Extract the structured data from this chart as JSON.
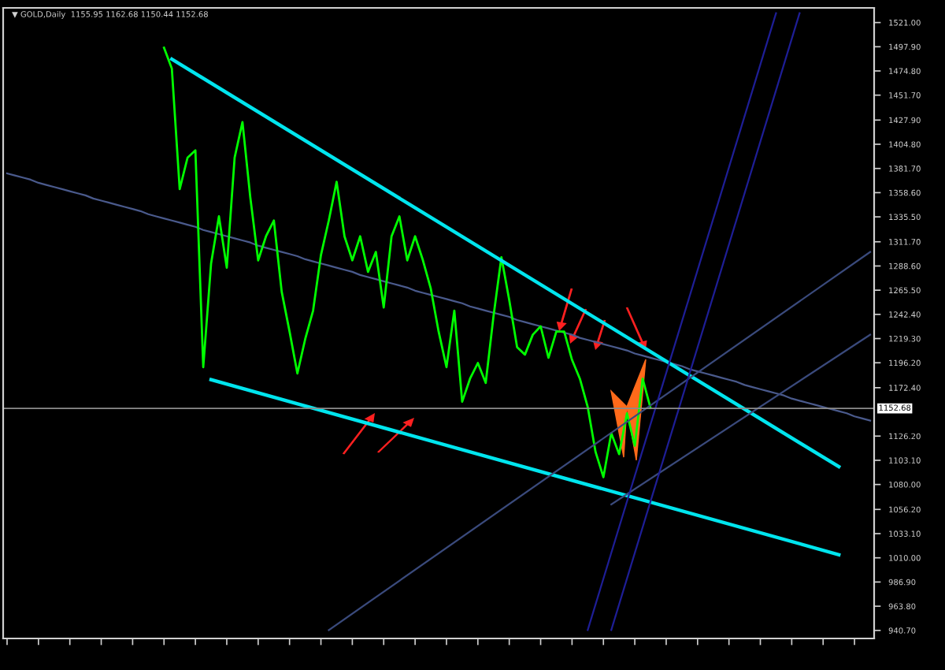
{
  "chart_data": {
    "type": "line",
    "title": "▼ GOLD,Daily  1155.95 1162.68 1150.44 1152.68",
    "categories": [
      null,
      null,
      null,
      null,
      null,
      null,
      null,
      null,
      null,
      null,
      null,
      null,
      null,
      null,
      null,
      null,
      null,
      null,
      null,
      null,
      null,
      null,
      null,
      null,
      null,
      null,
      null,
      null,
      null,
      null,
      null,
      null,
      null,
      null,
      null,
      null,
      null,
      null,
      null,
      null,
      null,
      null,
      null,
      null,
      null,
      null,
      null,
      null,
      null,
      null,
      null,
      null,
      null,
      null,
      null,
      null,
      null,
      null,
      null,
      null,
      null,
      null,
      null,
      null,
      null,
      null,
      null,
      null,
      null,
      null,
      null,
      null,
      null,
      null,
      null,
      null,
      null,
      null,
      null,
      null,
      null,
      null,
      null,
      null,
      null,
      null,
      null,
      null,
      null,
      null,
      null,
      null,
      null,
      null,
      null,
      null,
      null,
      null,
      null,
      null,
      null,
      null,
      null,
      null,
      null,
      null,
      null,
      null,
      null,
      null,
      null
    ],
    "series": [
      {
        "type": "line",
        "color": "#4a5a8c",
        "values": [
          1377,
          1375,
          1373,
          1371,
          1368,
          1366,
          1364,
          1362,
          1360,
          1358,
          1356,
          1353,
          1351,
          1349,
          1347,
          1345,
          1343,
          1341,
          1338,
          1336,
          1334,
          1332,
          1330,
          1328,
          1326,
          1323,
          1321,
          1319,
          1317,
          1315,
          1313,
          1311,
          1308,
          1306,
          1304,
          1302,
          1300,
          1298,
          1295,
          1293,
          1291,
          1289,
          1287,
          1285,
          1283,
          1280,
          1278,
          1276,
          1274,
          1272,
          1270,
          1268,
          1265,
          1263,
          1261,
          1259,
          1257,
          1255,
          1253,
          1250,
          1248,
          1246,
          1244,
          1242,
          1240,
          1237,
          1235,
          1233,
          1231,
          1229,
          1227,
          1225,
          1223,
          1220,
          1218,
          1216,
          1214,
          1212,
          1210,
          1208,
          1205,
          1203,
          1201,
          1199,
          1197,
          1195,
          1193,
          1190,
          1188,
          1186,
          1184,
          1182,
          1180,
          1178,
          1175,
          1173,
          1171,
          1169,
          1167,
          1165,
          1162,
          1160,
          1158,
          1156,
          1154,
          1152,
          1150,
          1148,
          1145,
          1143,
          1141
        ]
      },
      {
        "color": "#00ff00",
        "values": [
          null,
          null,
          null,
          null,
          null,
          null,
          null,
          null,
          null,
          null,
          null,
          null,
          null,
          null,
          null,
          null,
          null,
          null,
          null,
          null,
          1497,
          1477,
          1362,
          1392,
          1399,
          1192,
          1291,
          1336,
          1287,
          1392,
          1426,
          1354,
          1294,
          1317,
          1332,
          1264,
          1226,
          1186,
          1219,
          1246,
          1299,
          1332,
          1369,
          1317,
          1294,
          1317,
          1283,
          1302,
          1249,
          1317,
          1336,
          1294,
          1317,
          1294,
          1267,
          1226,
          1192,
          1246,
          1159,
          1181,
          1196,
          1177,
          1241,
          1297,
          1256,
          1211,
          1204,
          1223,
          1231,
          1201,
          1226,
          1226,
          1199,
          1181,
          1154,
          1111,
          1087,
          1129,
          1109,
          1148,
          1117,
          1181,
          1153,
          null,
          null,
          null,
          null,
          null,
          null,
          null,
          null,
          null,
          null,
          null,
          null,
          null,
          null,
          null,
          null,
          null,
          null,
          null,
          null,
          null,
          null,
          null,
          null,
          null,
          null,
          null,
          null
        ]
      },
      {
        "type": "line",
        "color": "#00e5ee",
        "values": [
          null,
          null,
          null,
          null,
          null,
          null,
          null,
          null,
          null,
          null,
          null,
          null,
          null,
          null,
          null,
          null,
          null,
          null,
          null,
          null,
          null,
          1486,
          null,
          null,
          null,
          null,
          null,
          null,
          null,
          null,
          null,
          null,
          null,
          null,
          null,
          null,
          null,
          null,
          null,
          null,
          null,
          null,
          null,
          null,
          null,
          null,
          null,
          null,
          null,
          null,
          null,
          null,
          null,
          null,
          null,
          null,
          null,
          null,
          null,
          null,
          null,
          null,
          null,
          null,
          null,
          null,
          null,
          null,
          null,
          null,
          null,
          null,
          null,
          null,
          null,
          null,
          null,
          null,
          null,
          null,
          null,
          null,
          null,
          null,
          null,
          null,
          null,
          null,
          null,
          null,
          null,
          null,
          null,
          null,
          null,
          null,
          null,
          null,
          null,
          null,
          null,
          null,
          null,
          null,
          null,
          null,
          1097,
          null,
          null,
          null,
          null
        ]
      },
      {
        "type": "line",
        "color": "#00e5ee",
        "values": [
          null,
          null,
          null,
          null,
          null,
          null,
          null,
          null,
          null,
          null,
          null,
          null,
          null,
          null,
          null,
          null,
          null,
          null,
          null,
          null,
          null,
          null,
          null,
          null,
          null,
          null,
          1180,
          null,
          null,
          null,
          null,
          null,
          null,
          null,
          null,
          null,
          null,
          null,
          null,
          null,
          null,
          null,
          null,
          null,
          null,
          null,
          null,
          null,
          null,
          null,
          null,
          null,
          null,
          null,
          null,
          null,
          null,
          null,
          null,
          null,
          null,
          null,
          null,
          null,
          null,
          null,
          null,
          null,
          null,
          null,
          null,
          null,
          null,
          null,
          null,
          null,
          null,
          null,
          null,
          null,
          null,
          null,
          null,
          null,
          null,
          null,
          null,
          null,
          null,
          null,
          null,
          null,
          null,
          null,
          null,
          null,
          null,
          null,
          null,
          null,
          null,
          null,
          null,
          null,
          null,
          null,
          1013,
          null,
          null,
          null,
          null
        ]
      },
      {
        "type": "line",
        "color": "#3a4a7c",
        "values": [
          null,
          null,
          null,
          null,
          null,
          null,
          null,
          null,
          null,
          null,
          null,
          null,
          null,
          null,
          null,
          null,
          null,
          null,
          null,
          null,
          null,
          null,
          null,
          null,
          null,
          null,
          null,
          null,
          null,
          null,
          null,
          null,
          null,
          null,
          null,
          null,
          null,
          null,
          null,
          null,
          null,
          941,
          null,
          null,
          null,
          null,
          null,
          null,
          null,
          null,
          null,
          null,
          null,
          null,
          null,
          null,
          null,
          null,
          null,
          null,
          null,
          null,
          null,
          null,
          null,
          null,
          null,
          null,
          null,
          null,
          null,
          null,
          null,
          null,
          null,
          null,
          null,
          null,
          null,
          null,
          null,
          null,
          null,
          null,
          null,
          null,
          null,
          null,
          null,
          null,
          null,
          null,
          null,
          null,
          null,
          null,
          null,
          null,
          null,
          null,
          null,
          null,
          null,
          null,
          null,
          null,
          null,
          null,
          null,
          null,
          1302
        ]
      },
      {
        "type": "line",
        "color": "#3a4a7c",
        "values": [
          null,
          null,
          null,
          null,
          null,
          null,
          null,
          null,
          null,
          null,
          null,
          null,
          null,
          null,
          null,
          null,
          null,
          null,
          null,
          null,
          null,
          null,
          null,
          null,
          null,
          null,
          null,
          null,
          null,
          null,
          null,
          null,
          null,
          null,
          null,
          null,
          null,
          null,
          null,
          null,
          null,
          null,
          null,
          null,
          null,
          null,
          null,
          null,
          null,
          null,
          null,
          null,
          null,
          null,
          null,
          null,
          null,
          null,
          null,
          null,
          null,
          null,
          null,
          null,
          null,
          null,
          null,
          null,
          null,
          null,
          null,
          null,
          null,
          null,
          null,
          null,
          null,
          1061,
          null,
          null,
          null,
          null,
          null,
          null,
          null,
          null,
          null,
          null,
          null,
          null,
          null,
          null,
          null,
          null,
          null,
          null,
          null,
          null,
          null,
          null,
          null,
          null,
          null,
          null,
          null,
          null,
          null,
          null,
          null,
          null,
          1223
        ]
      },
      {
        "type": "line",
        "color": "#1e1e96",
        "values": [
          null,
          null,
          null,
          null,
          null,
          null,
          null,
          null,
          null,
          null,
          null,
          null,
          null,
          null,
          null,
          null,
          null,
          null,
          null,
          null,
          null,
          null,
          null,
          null,
          null,
          null,
          null,
          null,
          null,
          null,
          null,
          null,
          null,
          null,
          null,
          null,
          null,
          null,
          null,
          null,
          null,
          null,
          null,
          null,
          null,
          null,
          null,
          null,
          null,
          null,
          null,
          null,
          null,
          null,
          null,
          null,
          null,
          null,
          null,
          null,
          null,
          null,
          null,
          null,
          null,
          null,
          null,
          null,
          null,
          null,
          null,
          null,
          null,
          null,
          941,
          null,
          null,
          null,
          null,
          null,
          null,
          null,
          null,
          null,
          null,
          null,
          null,
          null,
          null,
          null,
          null,
          null,
          null,
          null,
          null,
          null,
          null,
          null,
          1530,
          null,
          null,
          null,
          null,
          null,
          null,
          null,
          null,
          null,
          null,
          null,
          null
        ]
      },
      {
        "type": "line",
        "color": "#1e1e96",
        "values": [
          null,
          null,
          null,
          null,
          null,
          null,
          null,
          null,
          null,
          null,
          null,
          null,
          null,
          null,
          null,
          null,
          null,
          null,
          null,
          null,
          null,
          null,
          null,
          null,
          null,
          null,
          null,
          null,
          null,
          null,
          null,
          null,
          null,
          null,
          null,
          null,
          null,
          null,
          null,
          null,
          null,
          null,
          null,
          null,
          null,
          null,
          null,
          null,
          null,
          null,
          null,
          null,
          null,
          null,
          null,
          null,
          null,
          null,
          null,
          null,
          null,
          null,
          null,
          null,
          null,
          null,
          null,
          null,
          null,
          null,
          null,
          null,
          null,
          null,
          null,
          null,
          null,
          941,
          null,
          null,
          null,
          null,
          null,
          null,
          null,
          null,
          null,
          null,
          null,
          null,
          null,
          null,
          null,
          null,
          null,
          null,
          null,
          null,
          null,
          null,
          null,
          1530,
          null,
          null,
          null,
          null,
          null,
          null,
          null,
          null,
          null
        ]
      }
    ],
    "ylim": [
      933,
      1535
    ],
    "yticks": [
      {
        "value": 1521,
        "label": "1521.00"
      },
      {
        "value": 1497.9,
        "label": "1497.90"
      },
      {
        "value": 1474.8,
        "label": "1474.80"
      },
      {
        "value": 1451.7,
        "label": "1451.70"
      },
      {
        "value": 1427.9,
        "label": "1427.90"
      },
      {
        "value": 1404.8,
        "label": "1404.80"
      },
      {
        "value": 1381.7,
        "label": "1381.70"
      },
      {
        "value": 1358.6,
        "label": "1358.60"
      },
      {
        "value": 1335.5,
        "label": "1335.50"
      },
      {
        "value": 1311.7,
        "label": "1311.70"
      },
      {
        "value": 1288.6,
        "label": "1288.60"
      },
      {
        "value": 1265.5,
        "label": "1265.50"
      },
      {
        "value": 1242.4,
        "label": "1242.40"
      },
      {
        "value": 1219.3,
        "label": "1219.30"
      },
      {
        "value": 1196.2,
        "label": "1196.20"
      },
      {
        "value": 1172.4,
        "label": "1172.40"
      },
      {
        "value": 1126.2,
        "label": "1126.20"
      },
      {
        "value": 1103.1,
        "label": "1103.10"
      },
      {
        "value": 1080,
        "label": "1080.00"
      },
      {
        "value": 1056.2,
        "label": "1056.20"
      },
      {
        "value": 1033.1,
        "label": "1033.10"
      },
      {
        "value": 1010,
        "label": "1010.00"
      },
      {
        "value": 986.9,
        "label": "986.90"
      },
      {
        "value": 963.8,
        "label": "963.80"
      },
      {
        "value": 940.7,
        "label": "940.70"
      }
    ],
    "ref_lines": [
      {
        "axis": "y",
        "value": 1152.68,
        "label": "1152.68",
        "color": "#8c8c8c"
      }
    ],
    "tick_labels": "y",
    "line_style": "solid",
    "marker": "none"
  }
}
